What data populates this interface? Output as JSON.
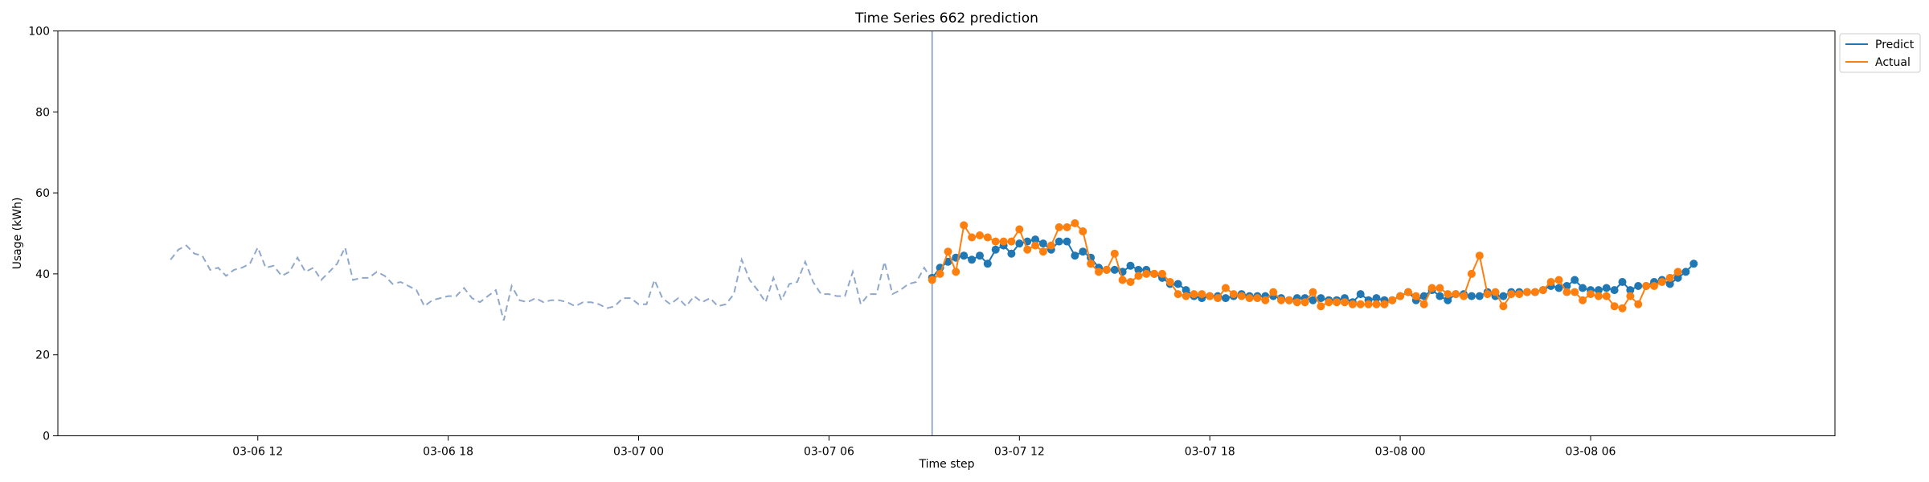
{
  "chart_data": {
    "type": "line",
    "title": "Time Series 662 prediction",
    "xlabel": "Time step",
    "ylabel": "Usage (kWh)",
    "ylim": [
      0,
      100
    ],
    "yticks": [
      0,
      20,
      40,
      60,
      80,
      100
    ],
    "xlim": [
      "2024-03-06 05:42",
      "2024-03-08 13:42"
    ],
    "xticks": [
      {
        "t": "2024-03-06 12:00",
        "label": "03-06 12"
      },
      {
        "t": "2024-03-06 18:00",
        "label": "03-06 18"
      },
      {
        "t": "2024-03-07 00:00",
        "label": "03-07 00"
      },
      {
        "t": "2024-03-07 06:00",
        "label": "03-07 06"
      },
      {
        "t": "2024-03-07 12:00",
        "label": "03-07 12"
      },
      {
        "t": "2024-03-07 18:00",
        "label": "03-07 18"
      },
      {
        "t": "2024-03-08 00:00",
        "label": "03-08 00"
      },
      {
        "t": "2024-03-08 06:00",
        "label": "03-08 06"
      }
    ],
    "grid": false,
    "legend": "outside-top-right",
    "forecast_start": "2024-03-07 09:15",
    "history": {
      "start": "2024-03-06 09:15",
      "step_minutes": 15,
      "color": "#8fa8cc",
      "values": [
        43.5,
        46,
        47,
        45,
        44.5,
        41,
        41.5,
        39.5,
        41,
        41.5,
        42.5,
        46.5,
        41.5,
        42,
        39.5,
        40.5,
        44,
        40.5,
        41.5,
        38.5,
        40.5,
        42.5,
        46.5,
        38.5,
        39,
        39,
        40.5,
        39.5,
        37.5,
        38,
        37,
        36,
        32,
        33.5,
        34,
        34.5,
        34.5,
        36.5,
        34,
        33,
        34.5,
        36,
        28.5,
        37,
        33.5,
        33,
        34,
        33,
        33.5,
        33.5,
        33,
        32,
        33,
        33,
        32.5,
        31.5,
        32,
        34,
        34,
        32.5,
        32.5,
        38.5,
        34,
        32.5,
        34,
        32,
        34.5,
        33,
        34,
        32,
        32.5,
        35,
        43.5,
        38.5,
        36,
        33,
        39,
        33.5,
        37.5,
        38,
        43,
        38,
        35,
        35,
        34.5,
        34.5,
        40.5,
        32.5,
        35,
        35,
        43,
        35,
        36,
        37.5,
        38,
        41.5,
        38.5
      ]
    },
    "series": [
      {
        "name": "Predict",
        "color": "#1f77b4",
        "start": "2024-03-07 09:15",
        "step_minutes": 15,
        "values": [
          39,
          41.5,
          43,
          44,
          44.5,
          43.5,
          44.5,
          42.5,
          46,
          47,
          45,
          47.5,
          48,
          48.5,
          47.5,
          46,
          48,
          48,
          44.5,
          45.5,
          44,
          41.5,
          41,
          41,
          40.5,
          42,
          41,
          41,
          40,
          39,
          37.5,
          37.5,
          36,
          34.5,
          34,
          34.5,
          34.5,
          34,
          34.5,
          35,
          34.5,
          34.5,
          34.5,
          34.5,
          34,
          33.5,
          34,
          34,
          33.5,
          34,
          33.5,
          33.5,
          34,
          33,
          35,
          33.5,
          34,
          33.5,
          33.5,
          34.5,
          35.5,
          33.5,
          34.5,
          36,
          34.5,
          33.5,
          35,
          35,
          34.5,
          34.5,
          35.5,
          34.5,
          34.5,
          35.5,
          35.5,
          35.5,
          35.5,
          36,
          37,
          36.5,
          37,
          38.5,
          36.5,
          36,
          36,
          36.5,
          36,
          38,
          36,
          37,
          37,
          38,
          38.5,
          37.5,
          39,
          40.5,
          42.5
        ]
      },
      {
        "name": "Actual",
        "color": "#ff7f0e",
        "start": "2024-03-07 09:15",
        "step_minutes": 15,
        "values": [
          38.5,
          40,
          45.5,
          40.5,
          52,
          49,
          49.5,
          49,
          48,
          48,
          48,
          51,
          46,
          47,
          45.5,
          47,
          51.5,
          51.5,
          52.5,
          50.5,
          42.5,
          40.5,
          41,
          45,
          38.5,
          38,
          39.5,
          40,
          40,
          40,
          38,
          35,
          34.5,
          35,
          35,
          34.5,
          34,
          36.5,
          35,
          34.5,
          34,
          34,
          33.5,
          35.5,
          33.5,
          33.5,
          33,
          33,
          35.5,
          32,
          33,
          33,
          33,
          32.5,
          32.5,
          32.5,
          32.5,
          32.5,
          33.5,
          34.5,
          35.5,
          34.5,
          32.5,
          36.5,
          36.5,
          35,
          35,
          34.5,
          40,
          44.5,
          35,
          35.5,
          32,
          35,
          35,
          35.5,
          35.5,
          36,
          38,
          38.5,
          35.5,
          35.5,
          33.5,
          35,
          34.5,
          34.5,
          32,
          31.5,
          34.5,
          32.5,
          37,
          37,
          38,
          39,
          40.5
        ]
      }
    ]
  }
}
